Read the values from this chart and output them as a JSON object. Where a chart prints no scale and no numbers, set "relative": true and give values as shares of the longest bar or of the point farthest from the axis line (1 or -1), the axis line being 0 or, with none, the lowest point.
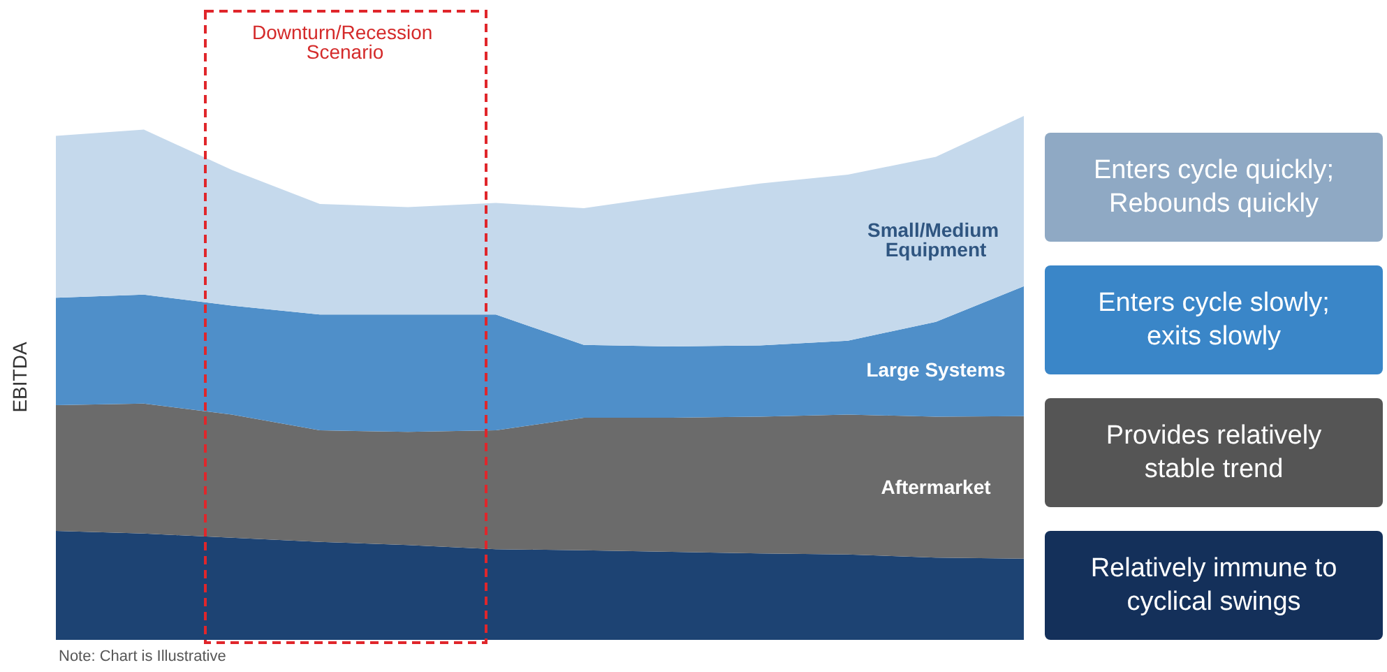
{
  "chart_data": {
    "type": "area",
    "stacked": true,
    "relative": true,
    "ylabel": "EBITDA",
    "legend": false,
    "grid": false,
    "categories": [
      null,
      null,
      null,
      null,
      null,
      null,
      null,
      null,
      null,
      null,
      null,
      null
    ],
    "series": [
      {
        "color": "#1d4373",
        "values": [
          0.208,
          0.203,
          0.195,
          0.187,
          0.181,
          0.173,
          0.171,
          0.168,
          0.165,
          0.163,
          0.157,
          0.155
        ]
      },
      {
        "name": "Aftermarket",
        "color": "#6b6b6b",
        "values": [
          0.24,
          0.248,
          0.235,
          0.213,
          0.216,
          0.227,
          0.253,
          0.256,
          0.261,
          0.267,
          0.269,
          0.272
        ]
      },
      {
        "name": "Large Systems",
        "color": "#4f8fc9",
        "values": [
          0.205,
          0.208,
          0.208,
          0.221,
          0.224,
          0.221,
          0.139,
          0.136,
          0.136,
          0.141,
          0.181,
          0.248
        ]
      },
      {
        "name": "Small/Medium Equipment",
        "color": "#c5d9ec",
        "values": [
          0.309,
          0.315,
          0.259,
          0.211,
          0.205,
          0.213,
          0.261,
          0.288,
          0.309,
          0.317,
          0.315,
          0.325
        ]
      }
    ],
    "annotations": [
      "Downturn/Recession Scenario",
      "Enters cycle quickly;\nRebounds quickly",
      "Enters cycle slowly;\nexits slowly",
      "Provides relatively\nstable trend",
      "Relatively immune to\ncyclical swings",
      "Note: Chart is Illustrative"
    ]
  }
}
